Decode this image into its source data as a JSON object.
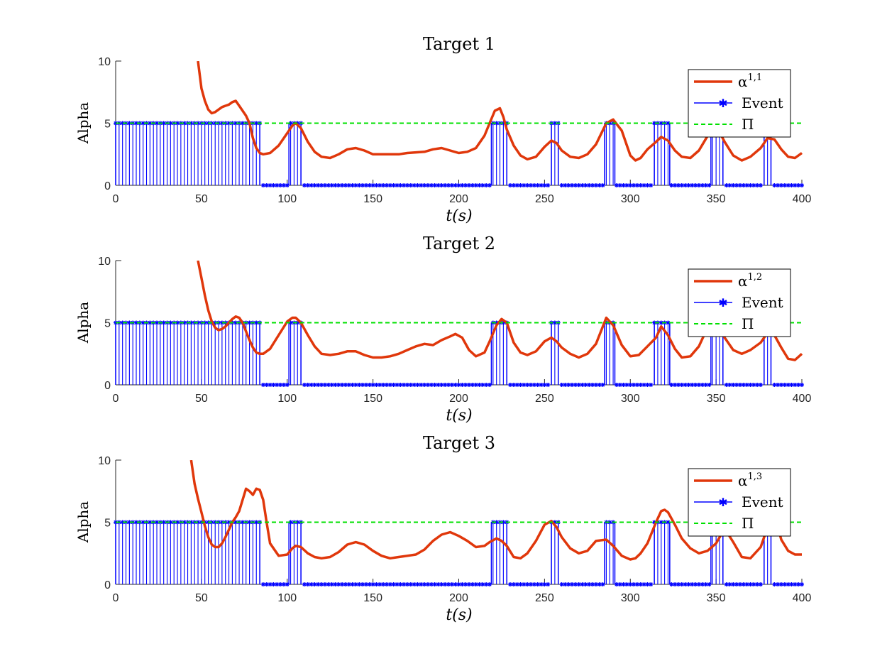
{
  "chart_data": [
    {
      "type": "line",
      "title": "Target 1",
      "xlabel": "t(s)",
      "ylabel": "Alpha",
      "xlim": [
        0,
        400
      ],
      "ylim": [
        0,
        10
      ],
      "xticks": [
        "0",
        "50",
        "100",
        "150",
        "200",
        "250",
        "300",
        "350",
        "400"
      ],
      "yticks": [
        "0",
        "5",
        "10"
      ],
      "threshold": 5,
      "event_on": [
        [
          0,
          84
        ],
        [
          101,
          108
        ],
        [
          219,
          228
        ],
        [
          254,
          258
        ],
        [
          285,
          291
        ],
        [
          314,
          323
        ],
        [
          347,
          354
        ],
        [
          378,
          382
        ]
      ],
      "series": [
        {
          "name": "α^{1,1}",
          "color": "#e0370b",
          "x": [
            48,
            50,
            52,
            54,
            56,
            58,
            60,
            62,
            64,
            66,
            68,
            70,
            72,
            74,
            76,
            78,
            80,
            82,
            84,
            86,
            90,
            95,
            100,
            103,
            105,
            108,
            112,
            116,
            120,
            125,
            130,
            135,
            140,
            145,
            150,
            160,
            165,
            170,
            180,
            185,
            190,
            195,
            200,
            205,
            210,
            215,
            218,
            221,
            224,
            226,
            228,
            232,
            236,
            240,
            245,
            250,
            254,
            257,
            260,
            265,
            270,
            275,
            280,
            286,
            290,
            295,
            300,
            303,
            306,
            310,
            315,
            318,
            322,
            326,
            330,
            335,
            340,
            343,
            346,
            350,
            355,
            360,
            365,
            370,
            376,
            380,
            384,
            388,
            392,
            396,
            400
          ],
          "y": [
            10,
            7.8,
            6.8,
            6.1,
            5.8,
            5.9,
            6.1,
            6.3,
            6.4,
            6.5,
            6.7,
            6.8,
            6.4,
            6.0,
            5.6,
            5.0,
            3.8,
            3.0,
            2.6,
            2.5,
            2.6,
            3.2,
            4.2,
            4.8,
            5.0,
            4.6,
            3.5,
            2.7,
            2.3,
            2.2,
            2.5,
            2.9,
            3.0,
            2.8,
            2.5,
            2.5,
            2.5,
            2.6,
            2.7,
            2.9,
            3.0,
            2.8,
            2.6,
            2.7,
            3.0,
            4.0,
            5.0,
            6.0,
            6.2,
            5.5,
            4.5,
            3.2,
            2.4,
            2.1,
            2.3,
            3.1,
            3.6,
            3.4,
            2.8,
            2.3,
            2.2,
            2.5,
            3.3,
            5.0,
            5.3,
            4.4,
            2.4,
            2.0,
            2.2,
            2.9,
            3.5,
            3.9,
            3.6,
            2.8,
            2.3,
            2.2,
            2.8,
            3.5,
            4.2,
            4.8,
            3.5,
            2.4,
            2.0,
            2.3,
            3.0,
            3.8,
            3.7,
            2.9,
            2.3,
            2.2,
            2.6
          ]
        },
        {
          "name": "Event",
          "color": "#0000ff"
        },
        {
          "name": "Π",
          "color": "#00e000"
        }
      ]
    },
    {
      "type": "line",
      "title": "Target 2",
      "xlabel": "t(s)",
      "ylabel": "Alpha",
      "xlim": [
        0,
        400
      ],
      "ylim": [
        0,
        10
      ],
      "xticks": [
        "0",
        "50",
        "100",
        "150",
        "200",
        "250",
        "300",
        "350",
        "400"
      ],
      "yticks": [
        "0",
        "5",
        "10"
      ],
      "threshold": 5,
      "event_on": [
        [
          0,
          84
        ],
        [
          101,
          108
        ],
        [
          219,
          228
        ],
        [
          254,
          258
        ],
        [
          285,
          291
        ],
        [
          314,
          323
        ],
        [
          347,
          354
        ],
        [
          378,
          382
        ]
      ],
      "series": [
        {
          "name": "α^{1,2}",
          "color": "#e0370b",
          "x": [
            48,
            50,
            52,
            54,
            56,
            58,
            60,
            62,
            64,
            66,
            68,
            70,
            72,
            74,
            76,
            78,
            80,
            82,
            84,
            86,
            90,
            95,
            100,
            103,
            105,
            108,
            112,
            116,
            120,
            125,
            130,
            135,
            140,
            145,
            150,
            155,
            160,
            165,
            170,
            175,
            180,
            185,
            190,
            195,
            198,
            202,
            206,
            210,
            215,
            218,
            222,
            225,
            228,
            232,
            236,
            240,
            245,
            250,
            254,
            257,
            260,
            265,
            270,
            275,
            280,
            286,
            290,
            295,
            300,
            305,
            310,
            315,
            318,
            322,
            326,
            330,
            335,
            340,
            343,
            346,
            350,
            355,
            360,
            365,
            370,
            376,
            380,
            384,
            388,
            392,
            396,
            400
          ],
          "y": [
            10,
            8.6,
            7.2,
            6.0,
            5.1,
            4.6,
            4.4,
            4.5,
            4.7,
            5.0,
            5.3,
            5.5,
            5.4,
            5.0,
            4.3,
            3.6,
            3.0,
            2.6,
            2.5,
            2.5,
            2.9,
            4.0,
            5.1,
            5.4,
            5.4,
            5.0,
            4.0,
            3.1,
            2.5,
            2.4,
            2.5,
            2.7,
            2.7,
            2.4,
            2.2,
            2.2,
            2.3,
            2.5,
            2.8,
            3.1,
            3.3,
            3.2,
            3.6,
            3.9,
            4.1,
            3.8,
            2.8,
            2.3,
            2.6,
            3.5,
            4.8,
            5.3,
            5.0,
            3.4,
            2.6,
            2.4,
            2.7,
            3.5,
            3.8,
            3.5,
            3.0,
            2.5,
            2.2,
            2.5,
            3.3,
            5.4,
            4.8,
            3.2,
            2.3,
            2.4,
            3.1,
            3.8,
            4.7,
            4.0,
            2.9,
            2.2,
            2.3,
            3.1,
            4.0,
            4.4,
            4.8,
            3.8,
            2.8,
            2.5,
            2.8,
            3.4,
            4.2,
            4.0,
            3.0,
            2.1,
            2.0,
            2.5
          ]
        },
        {
          "name": "Event",
          "color": "#0000ff"
        },
        {
          "name": "Π",
          "color": "#00e000"
        }
      ]
    },
    {
      "type": "line",
      "title": "Target 3",
      "xlabel": "t(s)",
      "ylabel": "Alpha",
      "xlim": [
        0,
        400
      ],
      "ylim": [
        0,
        10
      ],
      "xticks": [
        "0",
        "50",
        "100",
        "150",
        "200",
        "250",
        "300",
        "350",
        "400"
      ],
      "yticks": [
        "0",
        "5",
        "10"
      ],
      "threshold": 5,
      "event_on": [
        [
          0,
          84
        ],
        [
          101,
          108
        ],
        [
          219,
          228
        ],
        [
          254,
          258
        ],
        [
          285,
          291
        ],
        [
          314,
          323
        ],
        [
          347,
          354
        ],
        [
          378,
          382
        ]
      ],
      "series": [
        {
          "name": "α^{1,3}",
          "color": "#e0370b",
          "x": [
            44,
            46,
            48,
            50,
            52,
            54,
            56,
            58,
            60,
            62,
            64,
            66,
            68,
            70,
            72,
            74,
            76,
            78,
            80,
            82,
            84,
            86,
            88,
            90,
            95,
            100,
            103,
            105,
            108,
            112,
            116,
            120,
            125,
            130,
            135,
            140,
            145,
            150,
            155,
            160,
            165,
            170,
            175,
            180,
            185,
            190,
            195,
            200,
            205,
            210,
            215,
            218,
            222,
            225,
            228,
            232,
            236,
            240,
            245,
            250,
            254,
            257,
            260,
            265,
            270,
            275,
            280,
            286,
            290,
            295,
            300,
            303,
            306,
            310,
            315,
            318,
            320,
            322,
            326,
            330,
            335,
            340,
            345,
            350,
            355,
            360,
            365,
            370,
            376,
            380,
            384,
            388,
            392,
            396,
            400
          ],
          "y": [
            10,
            8.1,
            6.9,
            5.8,
            4.7,
            3.8,
            3.2,
            3.0,
            3.0,
            3.3,
            3.8,
            4.4,
            5.0,
            5.4,
            5.9,
            6.8,
            7.7,
            7.5,
            7.2,
            7.7,
            7.6,
            6.8,
            5.0,
            3.3,
            2.3,
            2.4,
            2.9,
            3.1,
            3.0,
            2.5,
            2.2,
            2.1,
            2.2,
            2.6,
            3.2,
            3.4,
            3.2,
            2.7,
            2.3,
            2.1,
            2.2,
            2.3,
            2.4,
            2.8,
            3.5,
            4.0,
            4.2,
            3.9,
            3.5,
            3.0,
            3.1,
            3.4,
            3.7,
            3.5,
            3.1,
            2.2,
            2.1,
            2.5,
            3.5,
            4.8,
            5.1,
            4.6,
            3.8,
            2.9,
            2.5,
            2.7,
            3.5,
            3.6,
            3.1,
            2.3,
            2.0,
            2.1,
            2.5,
            3.3,
            5.0,
            5.9,
            6.0,
            5.8,
            4.8,
            3.7,
            2.9,
            2.5,
            2.7,
            3.3,
            4.5,
            3.4,
            2.2,
            2.1,
            3.0,
            4.6,
            5.6,
            3.6,
            2.7,
            2.4,
            2.4
          ]
        },
        {
          "name": "Event",
          "color": "#0000ff"
        },
        {
          "name": "Π",
          "color": "#00e000"
        }
      ]
    }
  ]
}
